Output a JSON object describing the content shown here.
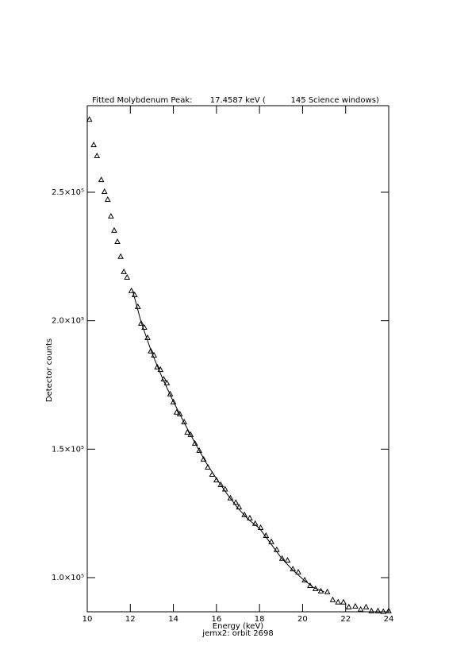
{
  "chart_data": {
    "type": "scatter",
    "title": "Fitted Molybdenum Peak:       17.4587 keV (          145 Science windows)",
    "x_label": "Energy (keV)",
    "y_label": "Detector counts",
    "footer": "jemx2: orbit 2698",
    "color": "#000000",
    "x": [
      10.1,
      10.3,
      10.45,
      10.65,
      10.8,
      10.95,
      11.1,
      11.25,
      11.4,
      11.55,
      11.7,
      11.85,
      12.05,
      12.2,
      12.35,
      12.5,
      12.65,
      12.8,
      12.95,
      13.1,
      13.25,
      13.4,
      13.55,
      13.7,
      13.85,
      14.0,
      14.15,
      14.3,
      14.5,
      14.65,
      14.8,
      15.0,
      15.2,
      15.4,
      15.6,
      15.8,
      16.0,
      16.2,
      16.4,
      16.65,
      16.9,
      17.05,
      17.3,
      17.55,
      17.8,
      18.05,
      18.3,
      18.55,
      18.8,
      19.05,
      19.3,
      19.55,
      19.8,
      20.1,
      20.35,
      20.6,
      20.85,
      21.15,
      21.4,
      21.65,
      21.9,
      22.15,
      22.45,
      22.7,
      22.95,
      23.2,
      23.5,
      23.75,
      24.0
    ],
    "values": [
      278400,
      268500,
      264200,
      254900,
      250300,
      247200,
      240700,
      235200,
      230800,
      225000,
      219100,
      216900,
      211700,
      210100,
      205500,
      199000,
      197400,
      193400,
      188200,
      186600,
      182000,
      181000,
      177300,
      175800,
      171500,
      168400,
      164400,
      163700,
      160600,
      156600,
      155700,
      152300,
      149500,
      146100,
      143000,
      140200,
      138000,
      136200,
      134500,
      131000,
      129300,
      127500,
      124500,
      123200,
      121100,
      119500,
      116400,
      114000,
      110900,
      107500,
      106800,
      103400,
      102200,
      99100,
      96900,
      95700,
      94800,
      94500,
      91400,
      90500,
      90500,
      88600,
      88900,
      87700,
      88600,
      87100,
      87100,
      86800,
      87100
    ],
    "fit": {
      "x": [
        12.1,
        12.5,
        13,
        13.5,
        14,
        14.5,
        15,
        15.5,
        16,
        16.5,
        17,
        17.5,
        18,
        18.5,
        19,
        19.5,
        20,
        20.5,
        21
      ],
      "values": [
        212000,
        199500,
        187500,
        177500,
        168500,
        160300,
        152500,
        145000,
        138500,
        132500,
        127000,
        122500,
        119200,
        113500,
        107800,
        103300,
        99500,
        96200,
        94500
      ]
    },
    "xlim": [
      10,
      24
    ],
    "ylim": [
      86700,
      283700
    ],
    "xticks": [
      10,
      12,
      14,
      16,
      18,
      20,
      22,
      24
    ],
    "yticks": [
      {
        "value": 100000,
        "label": "1.0×10⁵"
      },
      {
        "value": 150000,
        "label": "1.5×10⁵"
      },
      {
        "value": 200000,
        "label": "2.0×10⁵"
      },
      {
        "value": 250000,
        "label": "2.5×10⁵"
      }
    ]
  }
}
